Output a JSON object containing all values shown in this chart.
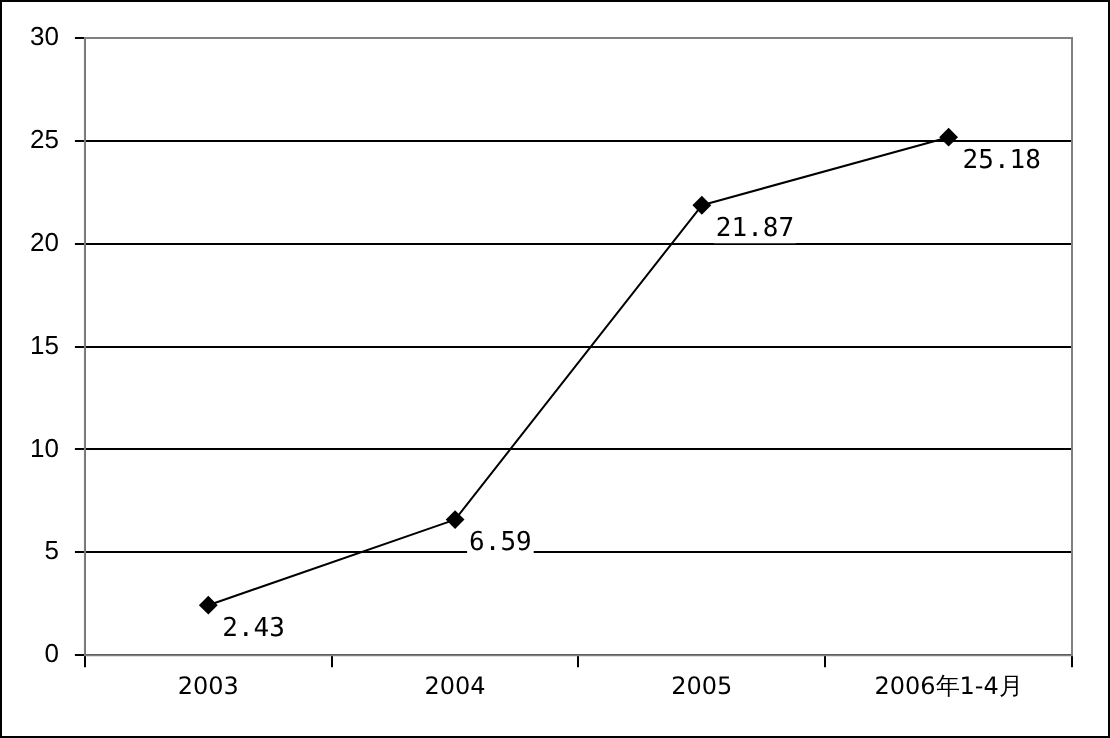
{
  "chart_data": {
    "type": "line",
    "categories": [
      "2003",
      "2004",
      "2005",
      "2006年1-4月"
    ],
    "series": [
      {
        "color": "#000000",
        "values": [
          2.43,
          6.59,
          21.87,
          25.18
        ]
      }
    ],
    "ylim": [
      0,
      30
    ],
    "yticks": [
      0,
      5,
      10,
      15,
      20,
      25,
      30
    ],
    "grid": "y",
    "marker": "diamond",
    "line_style": "solid",
    "data_labels": true,
    "legend": false
  }
}
